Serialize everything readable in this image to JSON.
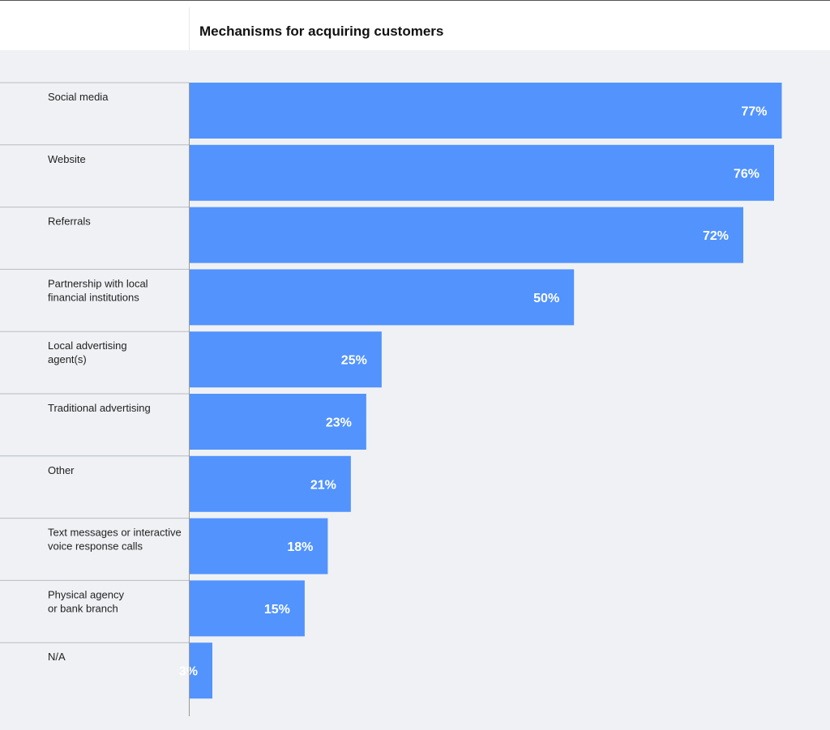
{
  "colors": {
    "bar": "#5293fd",
    "plot_background": "#eff1f4",
    "separator": "#b8bcc2",
    "axis": "#9a9a9a"
  },
  "chart_data": {
    "type": "bar",
    "orientation": "horizontal",
    "title": "Mechanisms for acquiring customers",
    "xlabel": "",
    "ylabel": "",
    "unit": "%",
    "xlim": [
      0,
      77
    ],
    "grid": false,
    "legend": "none",
    "categories": [
      [
        "Social media"
      ],
      [
        "Website"
      ],
      [
        "Referrals"
      ],
      [
        "Partnership with local",
        "financial institutions"
      ],
      [
        "Local advertising",
        "agent(s)"
      ],
      [
        "Traditional advertising"
      ],
      [
        "Other"
      ],
      [
        "Text messages or interactive",
        "voice response calls"
      ],
      [
        "Physical agency",
        "or bank branch"
      ],
      [
        "N/A"
      ]
    ],
    "values": [
      77,
      76,
      72,
      50,
      25,
      23,
      21,
      18,
      15,
      3
    ],
    "value_labels": [
      "77%",
      "76%",
      "72%",
      "50%",
      "25%",
      "23%",
      "21%",
      "18%",
      "15%",
      "3%"
    ]
  }
}
